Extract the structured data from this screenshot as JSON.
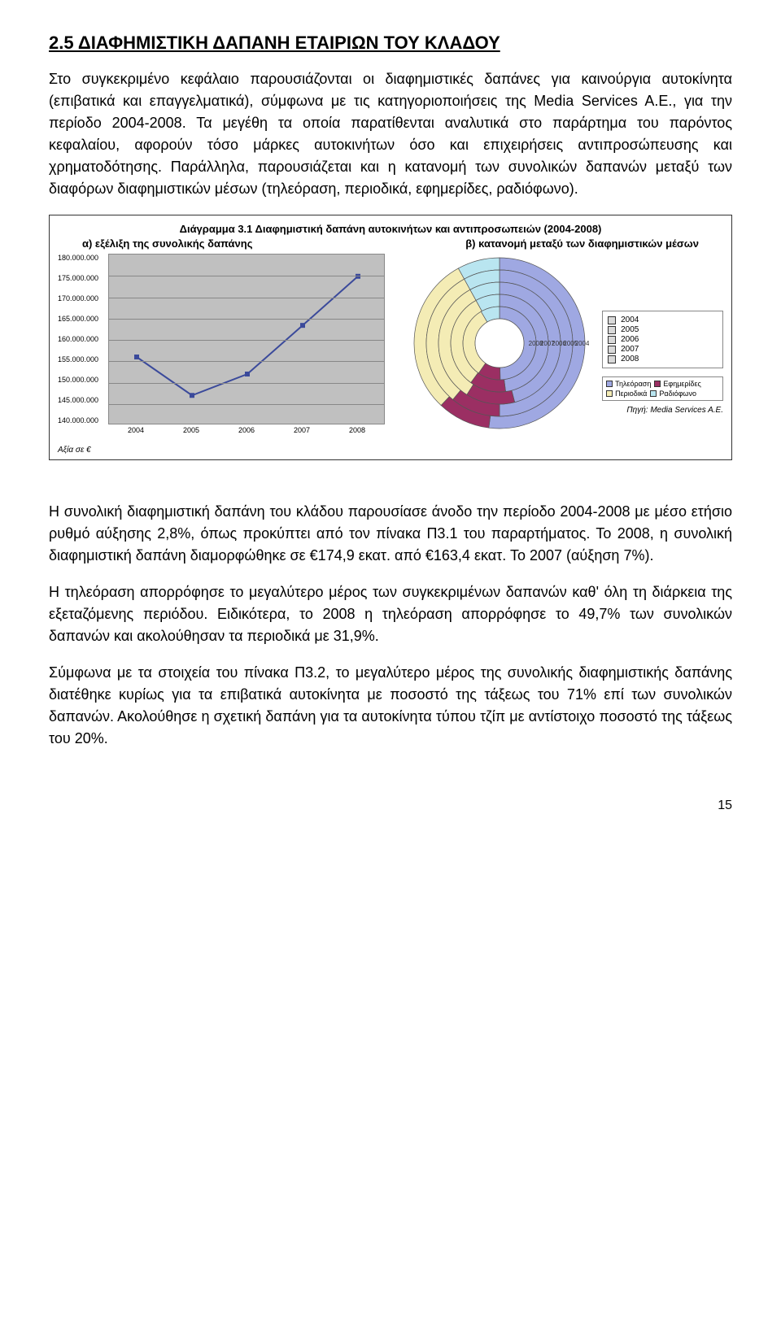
{
  "heading": "2.5 ΔΙΑΦΗΜΙΣΤΙΚΗ ΔΑΠΑΝΗ ΕΤΑΙΡΙΩΝ ΤΟΥ ΚΛΑΔΟΥ",
  "paragraphs": {
    "p1": "Στο συγκεκριμένο κεφάλαιο παρουσιάζονται οι διαφημιστικές δαπάνες για καινούργια αυτοκίνητα (επιβατικά και επαγγελματικά), σύμφωνα με τις κατηγοριοποιήσεις της Media Services A.E., για την περίοδο 2004-2008. Τα μεγέθη τα οποία παρατίθενται αναλυτικά στο παράρτημα του παρόντος κεφαλαίου, αφορούν τόσο μάρκες αυτοκινήτων όσο και επιχειρήσεις αντιπροσώπευσης και χρηματοδότησης. Παράλληλα, παρουσιάζεται και η κατανομή των συνολικών δαπανών μεταξύ των διαφόρων διαφημιστικών μέσων (τηλεόραση, περιοδικά, εφημερίδες, ραδιόφωνο).",
    "p2": "Η συνολική διαφημιστική δαπάνη του κλάδου παρουσίασε άνοδο την περίοδο 2004-2008 με μέσο ετήσιο ρυθμό αύξησης 2,8%, όπως προκύπτει από τον πίνακα Π3.1 του παραρτήματος. Το 2008, η συνολική διαφημιστική δαπάνη διαμορφώθηκε σε €174,9 εκατ. από €163,4 εκατ. Το 2007 (αύξηση 7%).",
    "p3": "Η τηλεόραση απορρόφησε το μεγαλύτερο μέρος των συγκεκριμένων δαπανών καθ' όλη τη διάρκεια της εξεταζόμενης περιόδου. Ειδικότερα, το 2008 η τηλεόραση απορρόφησε το 49,7% των συνολικών δαπανών και ακολούθησαν τα περιοδικά με 31,9%.",
    "p4": "Σύμφωνα με τα στοιχεία του πίνακα Π3.2, το μεγαλύτερο μέρος της συνολικής διαφημιστικής δαπάνης διατέθηκε κυρίως για τα επιβατικά αυτοκίνητα με ποσοστό της τάξεως του 71% επί των συνολικών δαπανών. Ακολούθησε η σχετική δαπάνη για τα αυτοκίνητα τύπου τζίπ με αντίστοιχο ποσοστό της τάξεως του 20%."
  },
  "chart": {
    "title": "Διάγραμμα 3.1 Διαφημιστική δαπάνη αυτοκινήτων και αντιπροσωπειών (2004-2008)",
    "subtitle_a": "α) εξέλιξη της συνολικής δαπάνης",
    "subtitle_b": "β) κατανομή μεταξύ των διαφημιστικών μέσων",
    "line": {
      "type": "line",
      "ymin": 140000000,
      "ymax": 180000000,
      "ystep": 5000000,
      "ylabels": [
        "180.000.000",
        "175.000.000",
        "170.000.000",
        "165.000.000",
        "160.000.000",
        "155.000.000",
        "150.000.000",
        "145.000.000",
        "140.000.000"
      ],
      "x": [
        "2004",
        "2005",
        "2006",
        "2007",
        "2008"
      ],
      "values": [
        156000000,
        147000000,
        152000000,
        163400000,
        174900000
      ],
      "line_color": "#3b4a9b",
      "marker_color": "#3b4a9b",
      "plot_bg": "#c0c0c0",
      "grid_color": "#888888"
    },
    "donut": {
      "type": "concentric-donut",
      "rings": [
        "2004",
        "2005",
        "2006",
        "2007",
        "2008"
      ],
      "media": [
        "Τηλεόραση",
        "Εφημερίδες",
        "Περιοδικά",
        "Ραδιόφωνο"
      ],
      "colors": {
        "television": "#9fa8e2",
        "newspapers": "#9b2f63",
        "magazines": "#f4ecb5",
        "radio": "#b9e5f0"
      },
      "shares": {
        "2004": [
          0.52,
          0.1,
          0.3,
          0.08
        ],
        "2005": [
          0.5,
          0.11,
          0.31,
          0.08
        ],
        "2006": [
          0.46,
          0.13,
          0.33,
          0.08
        ],
        "2007": [
          0.48,
          0.12,
          0.32,
          0.08
        ],
        "2008": [
          0.497,
          0.1,
          0.319,
          0.084
        ]
      }
    },
    "note_left": "Αξία σε €",
    "note_right": "Πηγή: Media Services A.E."
  },
  "page_number": "15"
}
